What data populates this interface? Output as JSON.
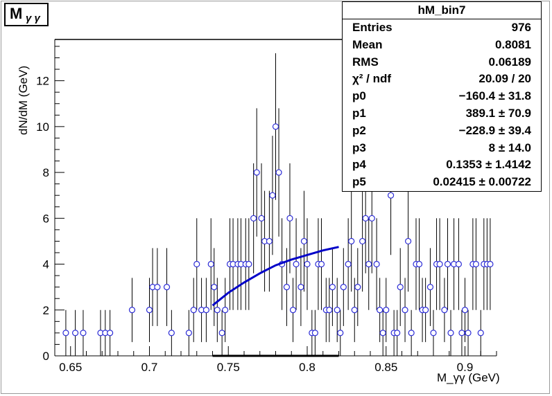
{
  "title": {
    "main": "M",
    "sub": "γ γ"
  },
  "stats_box": {
    "title": "hM_bin7",
    "rows": [
      {
        "key": "Entries",
        "value": "976"
      },
      {
        "key": "Mean",
        "value": "0.8081"
      },
      {
        "key": "RMS",
        "value": "0.06189"
      },
      {
        "key": "χ² / ndf",
        "value": "20.09 / 20"
      },
      {
        "key": "p0",
        "value": "−160.4 ± 31.8"
      },
      {
        "key": "p1",
        "value": "389.1 ± 70.9"
      },
      {
        "key": "p2",
        "value": "−228.9 ± 39.4"
      },
      {
        "key": "p3",
        "value": "8 ± 14.0"
      },
      {
        "key": "p4",
        "value": "0.1353 ± 1.4142"
      },
      {
        "key": "p5",
        "value": "0.02415 ± 0.00722"
      }
    ]
  },
  "colors": {
    "points": "#2b2bd6",
    "fit": "#0000c8",
    "errors": "#000000",
    "axes": "#000000"
  },
  "chart_data": {
    "type": "scatter",
    "title": "M γ γ",
    "xlabel": "M_γγ (GeV)",
    "ylabel": "dN/dM (GeV)",
    "xlim": [
      0.64,
      0.92
    ],
    "ylim": [
      0,
      13.8
    ],
    "xticks": [
      "0.65",
      "0.7",
      "0.75",
      "0.8",
      "0.85",
      "0.9"
    ],
    "yticks": [
      "0",
      "2",
      "4",
      "6",
      "8",
      "10",
      "12"
    ],
    "grid": false,
    "series": [
      {
        "kind": "data_with_errors",
        "x": [
          0.647,
          0.653,
          0.658,
          0.669,
          0.672,
          0.675,
          0.689,
          0.7,
          0.702,
          0.705,
          0.711,
          0.714,
          0.725,
          0.728,
          0.73,
          0.733,
          0.736,
          0.739,
          0.741,
          0.743,
          0.746,
          0.748,
          0.751,
          0.753,
          0.756,
          0.758,
          0.761,
          0.763,
          0.766,
          0.768,
          0.771,
          0.773,
          0.776,
          0.778,
          0.78,
          0.782,
          0.784,
          0.787,
          0.789,
          0.791,
          0.793,
          0.796,
          0.798,
          0.8,
          0.803,
          0.805,
          0.807,
          0.809,
          0.812,
          0.814,
          0.816,
          0.819,
          0.821,
          0.823,
          0.826,
          0.828,
          0.83,
          0.832,
          0.835,
          0.837,
          0.839,
          0.841,
          0.844,
          0.846,
          0.848,
          0.85,
          0.853,
          0.855,
          0.857,
          0.859,
          0.862,
          0.864,
          0.866,
          0.869,
          0.871,
          0.873,
          0.875,
          0.878,
          0.88,
          0.882,
          0.884,
          0.887,
          0.889,
          0.891,
          0.893,
          0.896,
          0.898,
          0.9,
          0.902,
          0.905,
          0.907,
          0.91,
          0.912,
          0.914,
          0.916
        ],
        "y": [
          1,
          1,
          1,
          1,
          1,
          1,
          2,
          2,
          3,
          3,
          3,
          1,
          1,
          2,
          4,
          2,
          2,
          4,
          3,
          2,
          1,
          2,
          4,
          4,
          4,
          4,
          4,
          4,
          6,
          8,
          6,
          5,
          5,
          7,
          10,
          8,
          4,
          3,
          6,
          2,
          4,
          3,
          5,
          4,
          1,
          1,
          4,
          4,
          2,
          2,
          3,
          2,
          1,
          3,
          4,
          5,
          2,
          3,
          5,
          6,
          4,
          6,
          4,
          2,
          1,
          2,
          7,
          1,
          1,
          3,
          2,
          5,
          1,
          4,
          4,
          2,
          2,
          3,
          1,
          4,
          4,
          2,
          4,
          1,
          4,
          4,
          1,
          2,
          1,
          4,
          4,
          1,
          4,
          4,
          4
        ],
        "yerr": [
          1,
          1,
          1,
          1,
          1,
          1,
          1.4,
          1.4,
          1.7,
          1.7,
          1.7,
          1,
          1,
          1.4,
          2,
          1.4,
          1.4,
          2,
          1.7,
          1.4,
          1,
          1.4,
          2,
          2,
          2,
          2,
          2,
          2,
          2.4,
          2.8,
          2.4,
          2.2,
          2.2,
          2.6,
          3.2,
          2.8,
          2,
          1.7,
          2.4,
          1.4,
          2,
          1.7,
          2.2,
          2,
          1,
          1,
          2,
          2,
          1.4,
          1.4,
          1.7,
          1.4,
          1,
          1.7,
          2,
          2.2,
          1.4,
          1.7,
          2.2,
          2.4,
          2,
          2.4,
          2,
          1.4,
          1,
          1.4,
          2.6,
          1,
          1,
          1.7,
          1.4,
          2.2,
          1,
          2,
          2,
          1.4,
          1.4,
          1.7,
          1,
          2,
          2,
          1.4,
          2,
          1,
          2,
          2,
          1,
          1.4,
          1,
          2,
          2,
          1,
          2,
          2,
          2
        ]
      },
      {
        "kind": "fit_curve",
        "x": [
          0.74,
          0.75,
          0.76,
          0.77,
          0.78,
          0.79,
          0.8,
          0.81,
          0.82
        ],
        "y": [
          2.2,
          2.75,
          3.2,
          3.6,
          3.95,
          4.2,
          4.4,
          4.6,
          4.75
        ]
      }
    ]
  }
}
